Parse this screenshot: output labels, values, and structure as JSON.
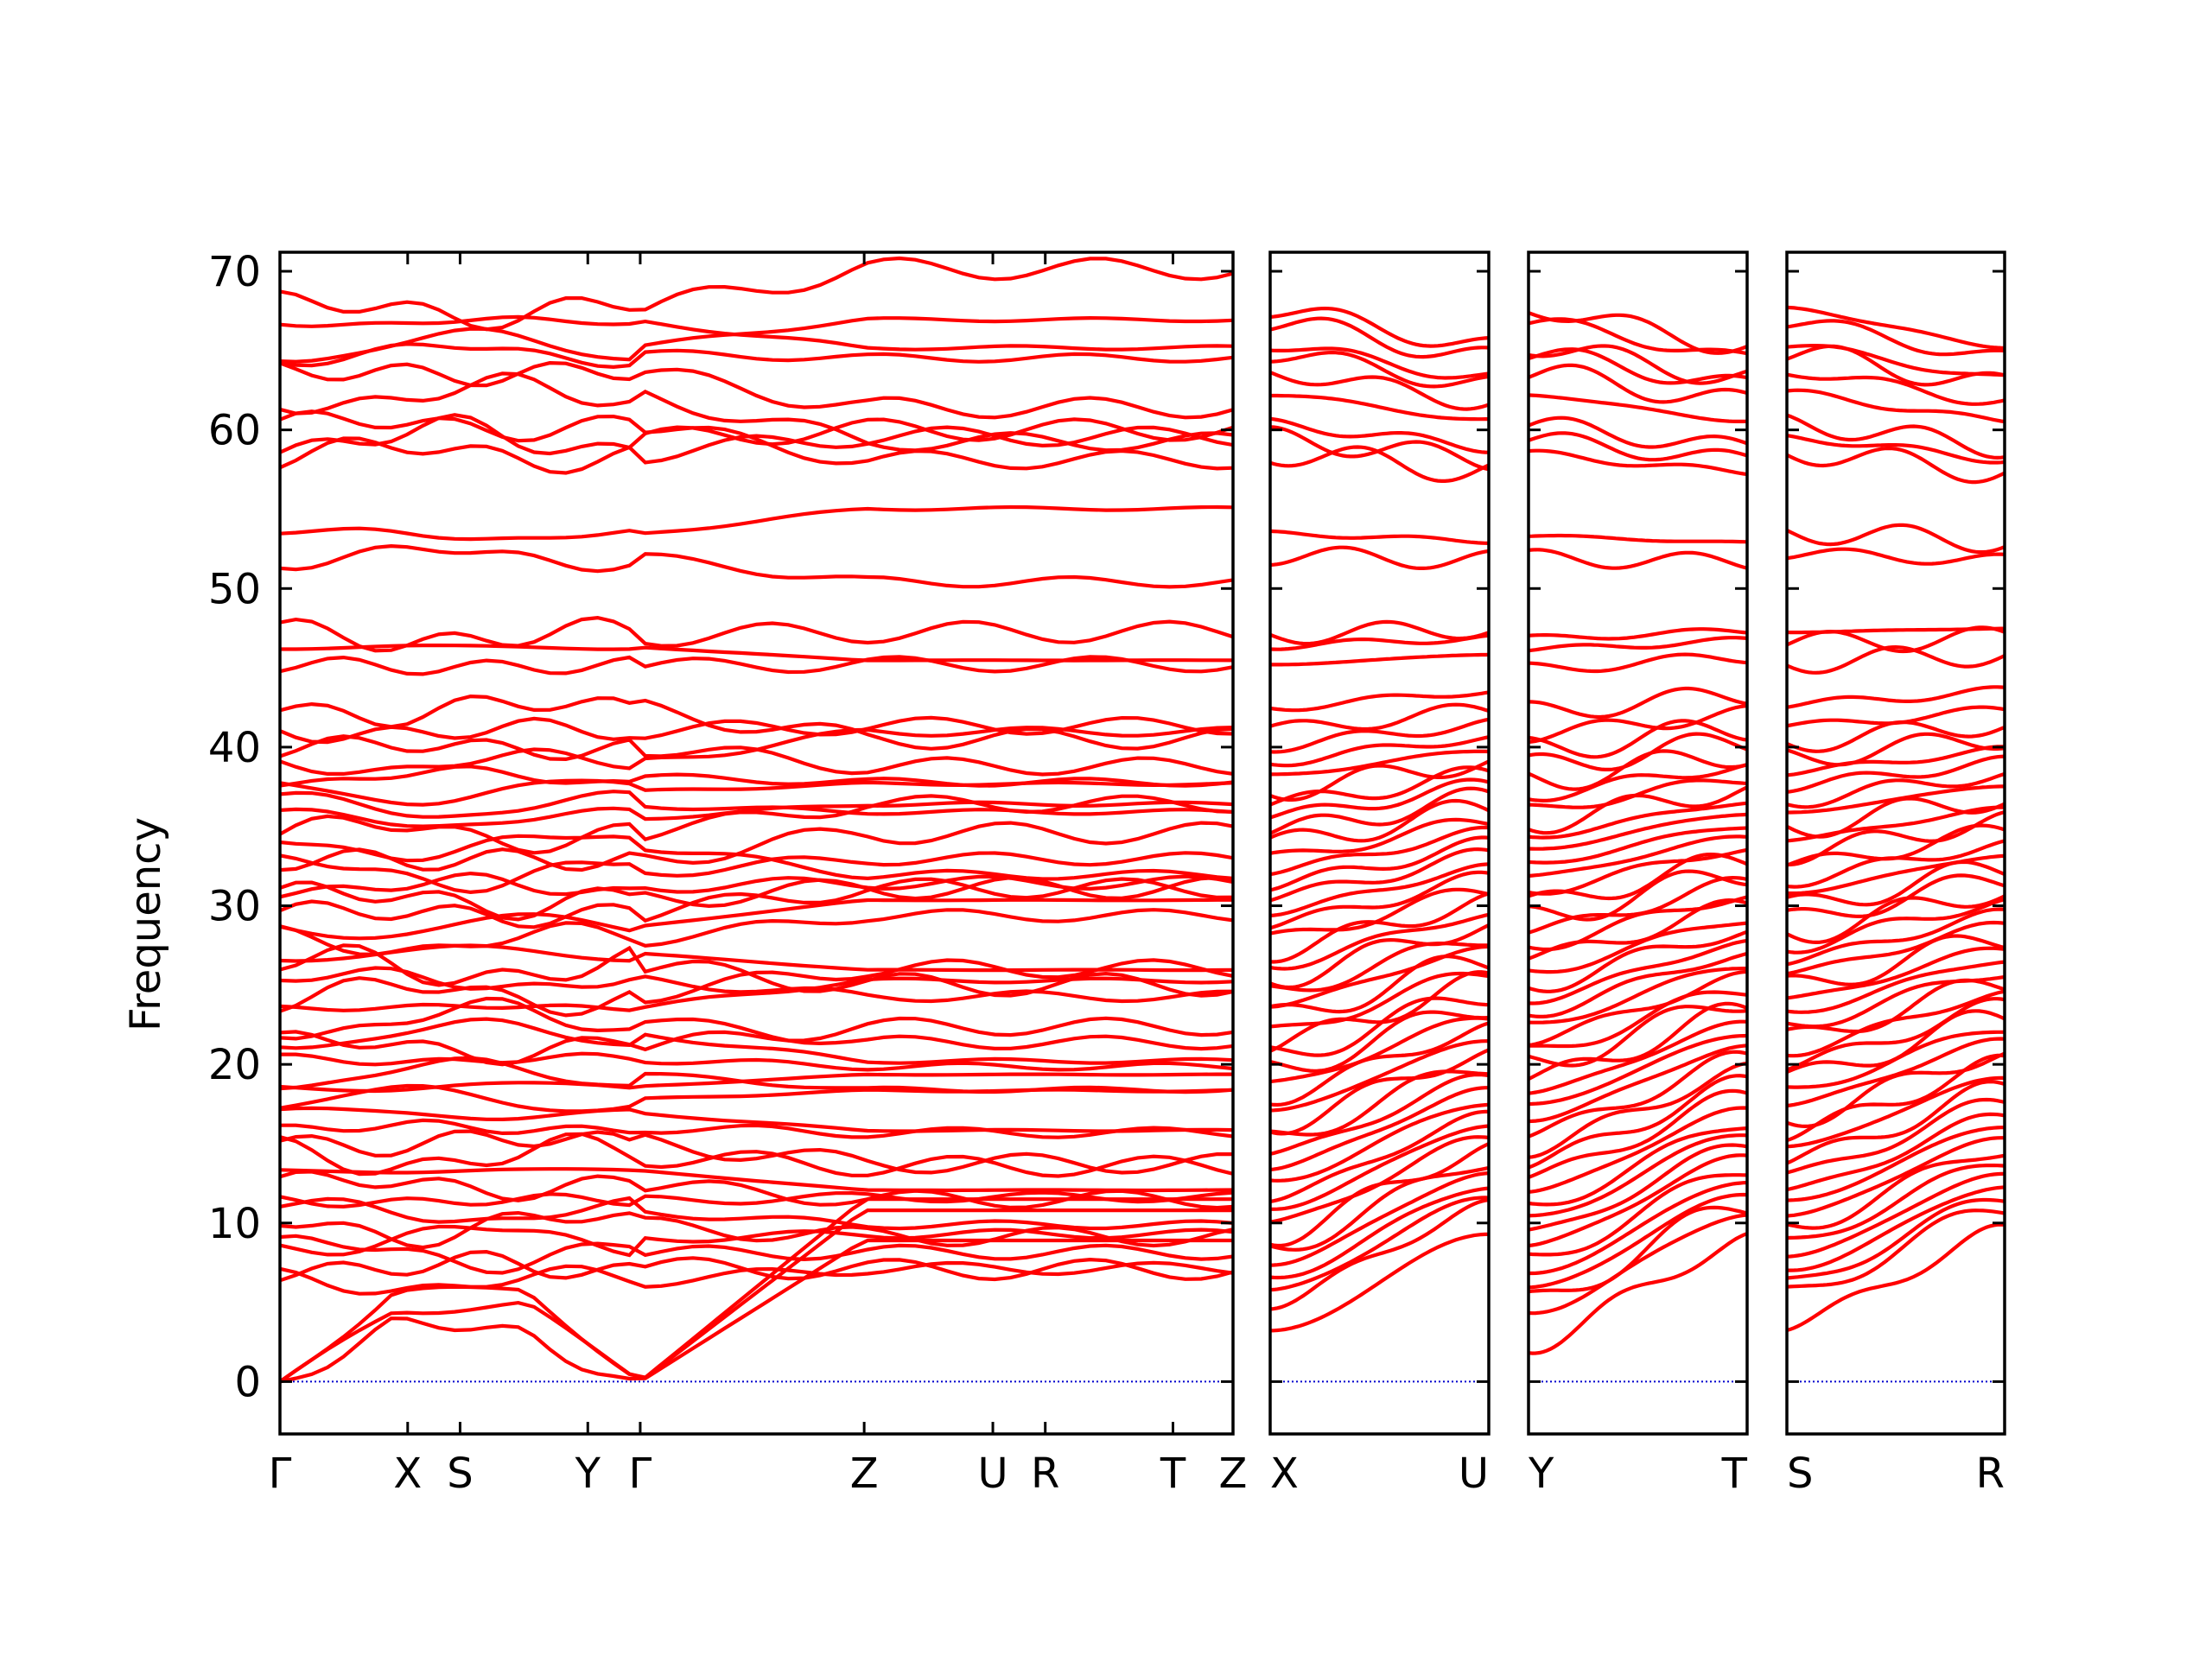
{
  "chart_data": {
    "type": "line",
    "ylabel": "Frequency",
    "ylim": [
      -3.3,
      71.2
    ],
    "yticks": [
      0,
      10,
      20,
      30,
      40,
      50,
      60,
      70
    ],
    "grid": false,
    "line_color": "#ff0000",
    "zero_line_color": "#0000cd",
    "panels": [
      {
        "name": "main-path",
        "points": [
          {
            "label": "Γ",
            "x": 0.0
          },
          {
            "label": "X",
            "x": 0.134
          },
          {
            "label": "S",
            "x": 0.189
          },
          {
            "label": "Y",
            "x": 0.323
          },
          {
            "label": "Γ",
            "x": 0.378
          },
          {
            "label": "Z",
            "x": 0.613
          },
          {
            "label": "U",
            "x": 0.748
          },
          {
            "label": "R",
            "x": 0.803
          },
          {
            "label": "T",
            "x": 0.937
          },
          {
            "label": "Z",
            "x": 1.0
          }
        ]
      },
      {
        "name": "X-U",
        "points": [
          {
            "label": "X",
            "x": 0.0
          },
          {
            "label": "U",
            "x": 1.0
          }
        ],
        "ymin_start": 3.2,
        "ymin_end": 9.3
      },
      {
        "name": "Y-T",
        "points": [
          {
            "label": "Y",
            "x": 0.0
          },
          {
            "label": "T",
            "x": 1.0
          }
        ],
        "ymin_start": 2.5,
        "ymin_end": 8.8
      },
      {
        "name": "S-R",
        "points": [
          {
            "label": "S",
            "x": 0.0
          },
          {
            "label": "R",
            "x": 1.0
          }
        ],
        "ymin_start": 3.7,
        "ymin_end": 9.3
      }
    ],
    "band_levels": [
      2.9,
      4.8,
      5.5,
      6.3,
      7.2,
      8.1,
      9.0,
      9.8,
      10.7,
      11.4,
      12.4,
      13.3,
      14.2,
      15.1,
      16.0,
      16.9,
      17.8,
      18.6,
      19.4,
      20.3,
      21.1,
      21.9,
      22.8,
      23.6,
      24.4,
      25.3,
      26.1,
      27.0,
      27.8,
      28.7,
      29.5,
      30.4,
      31.2,
      32.1,
      32.9,
      33.8,
      34.6,
      35.5,
      36.3,
      37.2,
      38.1,
      39.0,
      40.0,
      41.0,
      42.4,
      45.1,
      46.3,
      47.0,
      52.0,
      53.4,
      58.5,
      59.4,
      60.3,
      62.2,
      63.6,
      64.8,
      65.3,
      66.8,
      67.6
    ]
  }
}
